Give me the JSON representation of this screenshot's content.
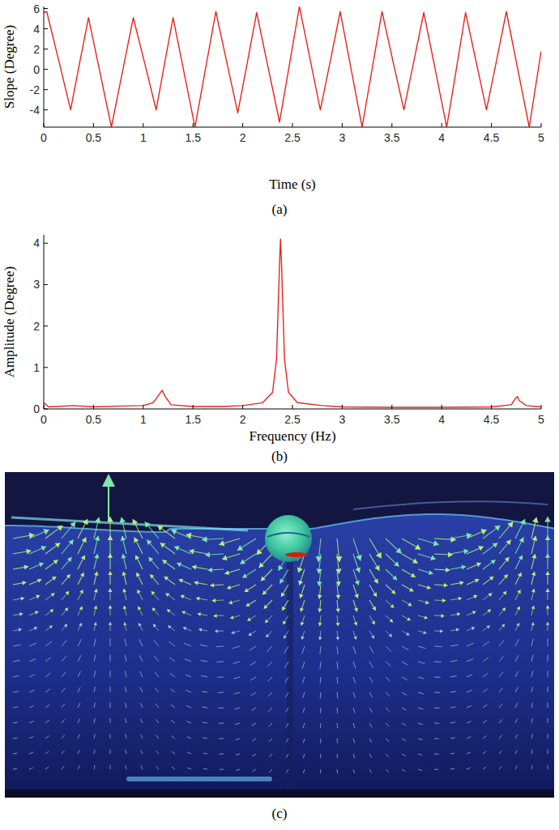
{
  "chart_data": [
    {
      "type": "line",
      "caption": "(a)",
      "x_label": "Time (s)",
      "y_label": "Slope (Degree)",
      "color": "#e8231d",
      "grid": false,
      "xlim": [
        0,
        5
      ],
      "ylim": [
        -5.7,
        6.2
      ],
      "xticks": [
        0,
        0.5,
        1,
        1.5,
        2,
        2.5,
        3,
        3.5,
        4,
        4.5,
        5
      ],
      "yticks": [
        -4,
        -2,
        0,
        2,
        4,
        6
      ],
      "x": [
        0,
        0.03,
        0.15,
        0.27,
        0.36,
        0.45,
        0.565,
        0.68,
        0.79,
        0.9,
        1.015,
        1.13,
        1.215,
        1.3,
        1.41,
        1.52,
        1.625,
        1.73,
        1.84,
        1.95,
        2.045,
        2.14,
        2.255,
        2.37,
        2.47,
        2.57,
        2.675,
        2.78,
        2.88,
        2.98,
        3.09,
        3.2,
        3.3,
        3.4,
        3.51,
        3.62,
        3.72,
        3.82,
        3.935,
        4.05,
        4.145,
        4.24,
        4.345,
        4.45,
        4.55,
        4.65,
        4.765,
        4.88,
        5.0
      ],
      "values": [
        5.6,
        5.7,
        0.9,
        -4.0,
        0.6,
        5.1,
        -0.3,
        -5.7,
        -0.3,
        5.1,
        0.6,
        -4.0,
        0.6,
        5.1,
        -0.3,
        -5.7,
        0.0,
        5.7,
        0.7,
        -4.3,
        0.6,
        5.6,
        0.2,
        -5.2,
        0.5,
        6.2,
        1.1,
        -4.0,
        0.8,
        5.7,
        0.0,
        -5.7,
        0.0,
        5.7,
        0.8,
        -4.0,
        0.8,
        5.6,
        0.0,
        -5.7,
        -0.1,
        5.6,
        0.8,
        -4.0,
        0.8,
        5.7,
        0.0,
        -5.7,
        1.8
      ]
    },
    {
      "type": "line",
      "caption": "(b)",
      "x_label": "Frequency (Hz)",
      "y_label": "Amplitude (Degree)",
      "color": "#e8231d",
      "grid": false,
      "xlim": [
        0,
        5
      ],
      "ylim": [
        0,
        4.2
      ],
      "xticks": [
        0,
        0.5,
        1,
        1.5,
        2,
        2.5,
        3,
        3.5,
        4,
        4.5,
        5
      ],
      "yticks": [
        0,
        1,
        2,
        3,
        4
      ],
      "x": [
        0,
        0.05,
        0.3,
        0.5,
        0.8,
        1.0,
        1.1,
        1.16,
        1.19,
        1.22,
        1.28,
        1.5,
        1.8,
        2.0,
        2.2,
        2.3,
        2.34,
        2.37,
        2.38,
        2.39,
        2.42,
        2.46,
        2.55,
        2.8,
        3.0,
        3.5,
        4.0,
        4.5,
        4.7,
        4.74,
        4.76,
        4.78,
        4.85,
        5.0
      ],
      "values": [
        0.15,
        0.05,
        0.08,
        0.05,
        0.07,
        0.08,
        0.15,
        0.35,
        0.45,
        0.3,
        0.1,
        0.06,
        0.06,
        0.08,
        0.15,
        0.4,
        1.2,
        3.5,
        4.1,
        3.5,
        1.2,
        0.4,
        0.15,
        0.08,
        0.05,
        0.04,
        0.04,
        0.05,
        0.1,
        0.25,
        0.3,
        0.2,
        0.08,
        0.05
      ]
    }
  ],
  "image_panel": {
    "caption": "(c)"
  }
}
